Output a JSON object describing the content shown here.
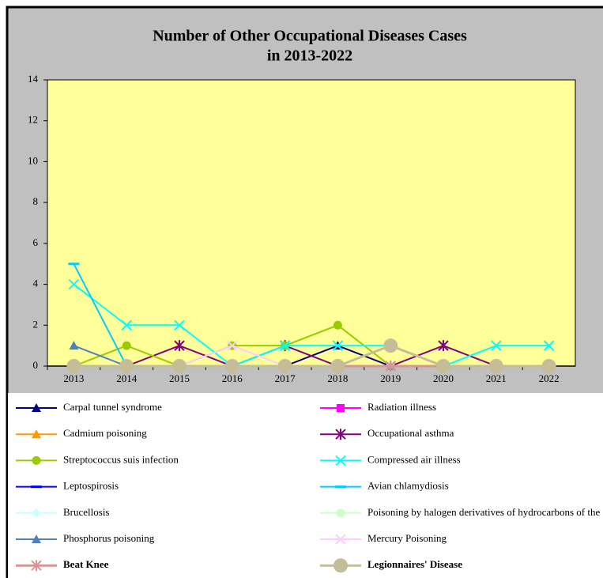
{
  "chart_data": {
    "type": "line",
    "title": [
      "Number of Other Occupational Diseases Cases",
      "in 2013-2022"
    ],
    "categories": [
      "2013",
      "2014",
      "2015",
      "2016",
      "2017",
      "2018",
      "2019",
      "2020",
      "2021",
      "2022"
    ],
    "ylim": [
      0,
      14
    ],
    "yticks": [
      0,
      2,
      4,
      6,
      8,
      10,
      12,
      14
    ],
    "plot_color": "#ffff99",
    "series": [
      {
        "name": "Carpal tunnel syndrome",
        "color": "#000080",
        "marker": "triangle",
        "values": [
          0,
          0,
          0,
          0,
          0,
          1,
          0,
          0,
          0,
          0
        ]
      },
      {
        "name": "Radiation illness",
        "color": "#ff00ff",
        "marker": "square",
        "values": [
          0,
          0,
          0,
          0,
          0,
          0,
          0,
          0,
          0,
          0
        ]
      },
      {
        "name": "Cadmium poisoning",
        "color": "#ff9900",
        "marker": "triangle",
        "values": [
          0,
          0,
          0,
          0,
          0,
          0,
          0,
          0,
          0,
          0
        ]
      },
      {
        "name": "Occupational asthma",
        "color": "#800080",
        "marker": "star",
        "values": [
          0,
          0,
          1,
          0,
          1,
          0,
          0,
          1,
          0,
          0
        ]
      },
      {
        "name": "Streptococcus suis infection",
        "color": "#99cc00",
        "marker": "circle",
        "values": [
          0,
          1,
          0,
          1,
          1,
          2,
          0,
          0,
          0,
          0
        ]
      },
      {
        "name": "Compressed air illness",
        "color": "#00ffff",
        "marker": "x",
        "values": [
          4,
          2,
          2,
          0,
          1,
          1,
          1,
          0,
          1,
          1
        ]
      },
      {
        "name": "Leptospirosis",
        "color": "#0000ff",
        "marker": "dash",
        "values": [
          0,
          0,
          0,
          0,
          0,
          0,
          0,
          0,
          0,
          0
        ]
      },
      {
        "name": "Avian chlamydiosis",
        "color": "#00ccff",
        "marker": "dash",
        "values": [
          5,
          0,
          0,
          0,
          0,
          0,
          0,
          0,
          0,
          0
        ]
      },
      {
        "name": "Brucellosis",
        "color": "#ccffff",
        "marker": "diamond",
        "values": [
          0,
          0,
          0,
          0,
          0,
          0,
          0,
          0,
          0,
          0
        ]
      },
      {
        "name": "Poisoning by halogen derivatives of hydrocarbons of the aliphatic series",
        "color": "#ccffcc",
        "marker": "circle",
        "values": [
          0,
          0,
          0,
          0,
          0,
          0,
          0,
          0,
          0,
          0
        ]
      },
      {
        "name": "Phosphorus poisoning",
        "color": "#4f81bd",
        "marker": "triangle",
        "values": [
          1,
          0,
          0,
          0,
          0,
          0,
          0,
          0,
          0,
          0
        ]
      },
      {
        "name": "Mercury Poisoning",
        "color": "#ffccff",
        "marker": "x",
        "values": [
          0,
          0,
          0,
          1,
          0,
          0,
          0,
          0,
          0,
          0
        ]
      },
      {
        "name": "Beat Knee",
        "color": "#d99594",
        "marker": "star",
        "bold": true,
        "values": [
          0,
          0,
          0,
          0,
          0,
          0,
          0,
          0,
          0,
          0
        ]
      },
      {
        "name": "Legionnaires' Disease",
        "color": "#c4bd97",
        "marker": "bigcircle",
        "bold": true,
        "values": [
          0,
          0,
          0,
          0,
          0,
          0,
          1,
          0,
          0,
          0
        ]
      }
    ]
  }
}
